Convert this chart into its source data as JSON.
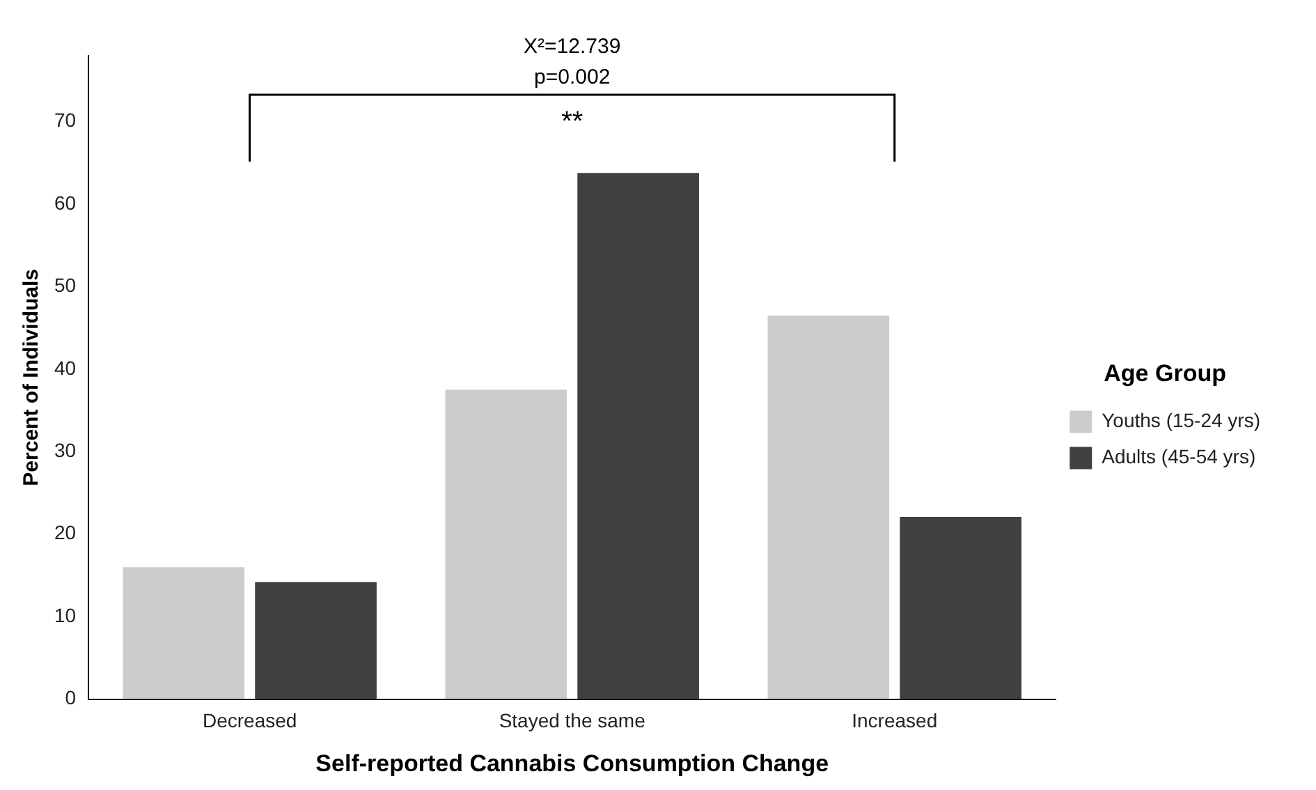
{
  "chart_data": {
    "type": "bar",
    "xlabel": "Self-reported Cannabis Consumption Change",
    "ylabel": "Percent of Individuals",
    "legend_title": "Age Group",
    "categories": [
      "Decreased",
      "Stayed the same",
      "Increased"
    ],
    "series": [
      {
        "name": "Youths (15-24 yrs)",
        "color": "#cccccc",
        "values": [
          16.0,
          37.5,
          46.5
        ]
      },
      {
        "name": "Adults (45-54 yrs)",
        "color": "#404040",
        "values": [
          14.2,
          63.8,
          22.1
        ]
      }
    ],
    "ylim": [
      0,
      78
    ],
    "yticks": [
      0,
      10,
      20,
      30,
      40,
      50,
      60,
      70
    ],
    "grid": false,
    "legend": "right",
    "annotations": [
      "X²=12.739",
      "p=0.002",
      "**"
    ]
  }
}
